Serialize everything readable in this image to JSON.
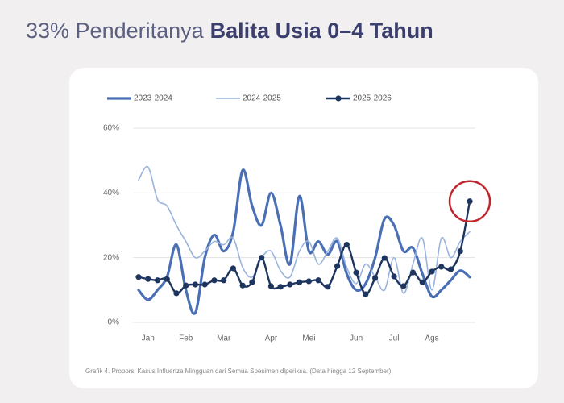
{
  "chart_data": {
    "type": "line",
    "title": {
      "regular": "33% Penderitanya",
      "bold": "Balita Usia 0–4 Tahun"
    },
    "caption": "Grafik 4. Proporsi Kasus Influenza Mingguan dari Semua Spesimen diperiksa. (Data hingga 12 September)",
    "categories": [
      null,
      "Jan",
      null,
      null,
      null,
      "Feb",
      null,
      null,
      null,
      "Mar",
      null,
      null,
      null,
      null,
      "Apr",
      null,
      null,
      null,
      "Mei",
      null,
      null,
      null,
      null,
      "Jun",
      null,
      null,
      null,
      "Jul",
      null,
      null,
      null,
      "Ags",
      null,
      null,
      null,
      null
    ],
    "ylim": [
      0,
      60
    ],
    "yticks": [
      {
        "value": 0,
        "label": "0%"
      },
      {
        "value": 20,
        "label": "20%"
      },
      {
        "value": 40,
        "label": "40%"
      },
      {
        "value": 60,
        "label": "60%"
      }
    ],
    "grid": true,
    "legend": "top",
    "series": [
      {
        "name": "2023-2024",
        "color": "#4a6fb5",
        "line_width": 3.2,
        "marker": false,
        "values": [
          10,
          7,
          10,
          14,
          24,
          10,
          3,
          20,
          27,
          22,
          28,
          47,
          36,
          30,
          40,
          30,
          18,
          39,
          22,
          25,
          21,
          25,
          15,
          10,
          12,
          20,
          32,
          30,
          22,
          23,
          15,
          8,
          10,
          13,
          16,
          14
        ]
      },
      {
        "name": "2024-2025",
        "color": "#9ab4dd",
        "line_width": 1.6,
        "marker": false,
        "values": [
          44,
          48,
          38,
          36,
          30,
          25,
          20,
          22,
          25,
          24,
          26,
          17,
          14,
          20,
          22,
          16,
          14,
          22,
          25,
          18,
          22,
          26,
          17,
          12,
          18,
          14,
          10,
          20,
          9,
          18,
          26,
          10,
          26,
          20,
          25,
          28
        ]
      },
      {
        "name": "2025-2026",
        "color": "#1e3560",
        "line_width": 2.4,
        "marker": true,
        "values": [
          14,
          13.4,
          13,
          13.4,
          9,
          11.4,
          11.7,
          11.7,
          13,
          13,
          16.7,
          11.4,
          12.4,
          20,
          11.2,
          11,
          11.7,
          12.4,
          12.7,
          13,
          11,
          17.4,
          24,
          15.4,
          8.7,
          13.7,
          19.9,
          14.2,
          11.2,
          15.4,
          12.4,
          15.7,
          17.2,
          16.4,
          22,
          37.4
        ]
      }
    ]
  }
}
